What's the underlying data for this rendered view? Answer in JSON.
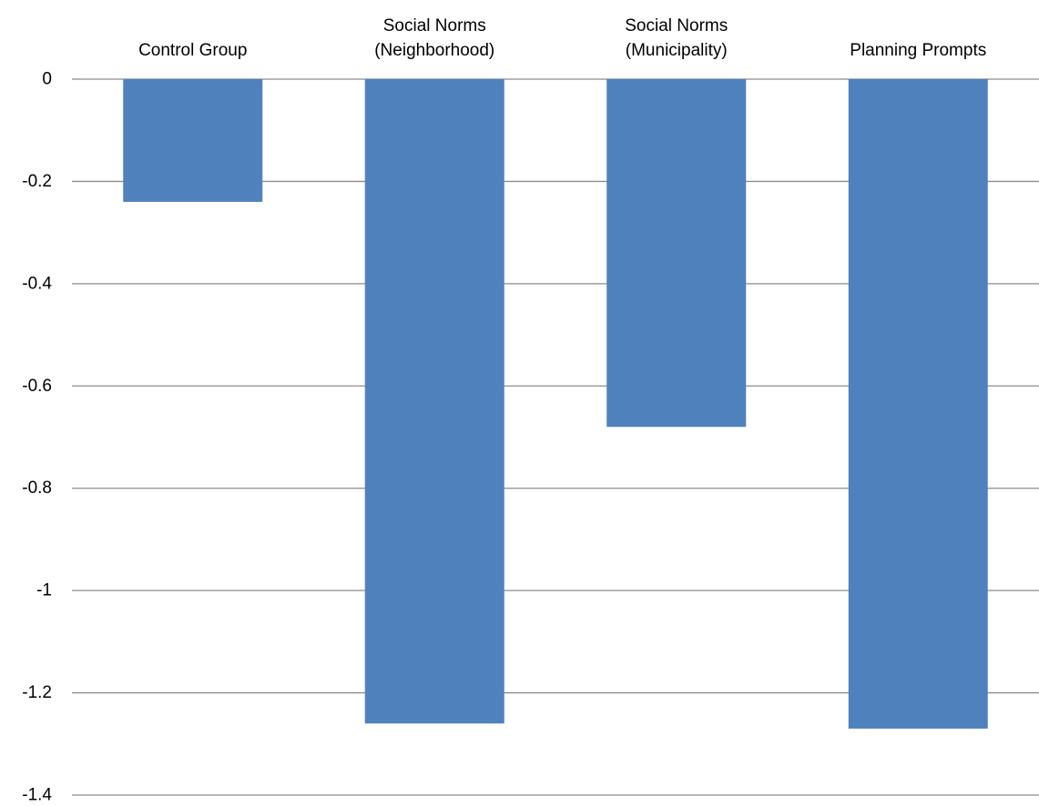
{
  "chart_data": {
    "type": "bar",
    "categories": [
      [
        "Control Group"
      ],
      [
        "Social Norms",
        "(Neighborhood)"
      ],
      [
        "Social Norms",
        "(Municipality)"
      ],
      [
        "Planning Prompts"
      ]
    ],
    "values": [
      -0.24,
      -1.26,
      -0.68,
      -1.27
    ],
    "ylim": [
      -1.4,
      0
    ],
    "yticks": [
      0,
      -0.2,
      -0.4,
      -0.6,
      -0.8,
      -1,
      -1.2,
      -1.4
    ],
    "ytick_labels": [
      "0",
      "-0.2",
      "-0.4",
      "-0.6",
      "-0.8",
      "-1",
      "-1.2",
      "-1.4"
    ],
    "title": "",
    "xlabel": "",
    "ylabel": "",
    "grid": true,
    "category_axis_position": "top",
    "bar_color": "#4f81bd",
    "grid_color": "#8c8c8c"
  }
}
